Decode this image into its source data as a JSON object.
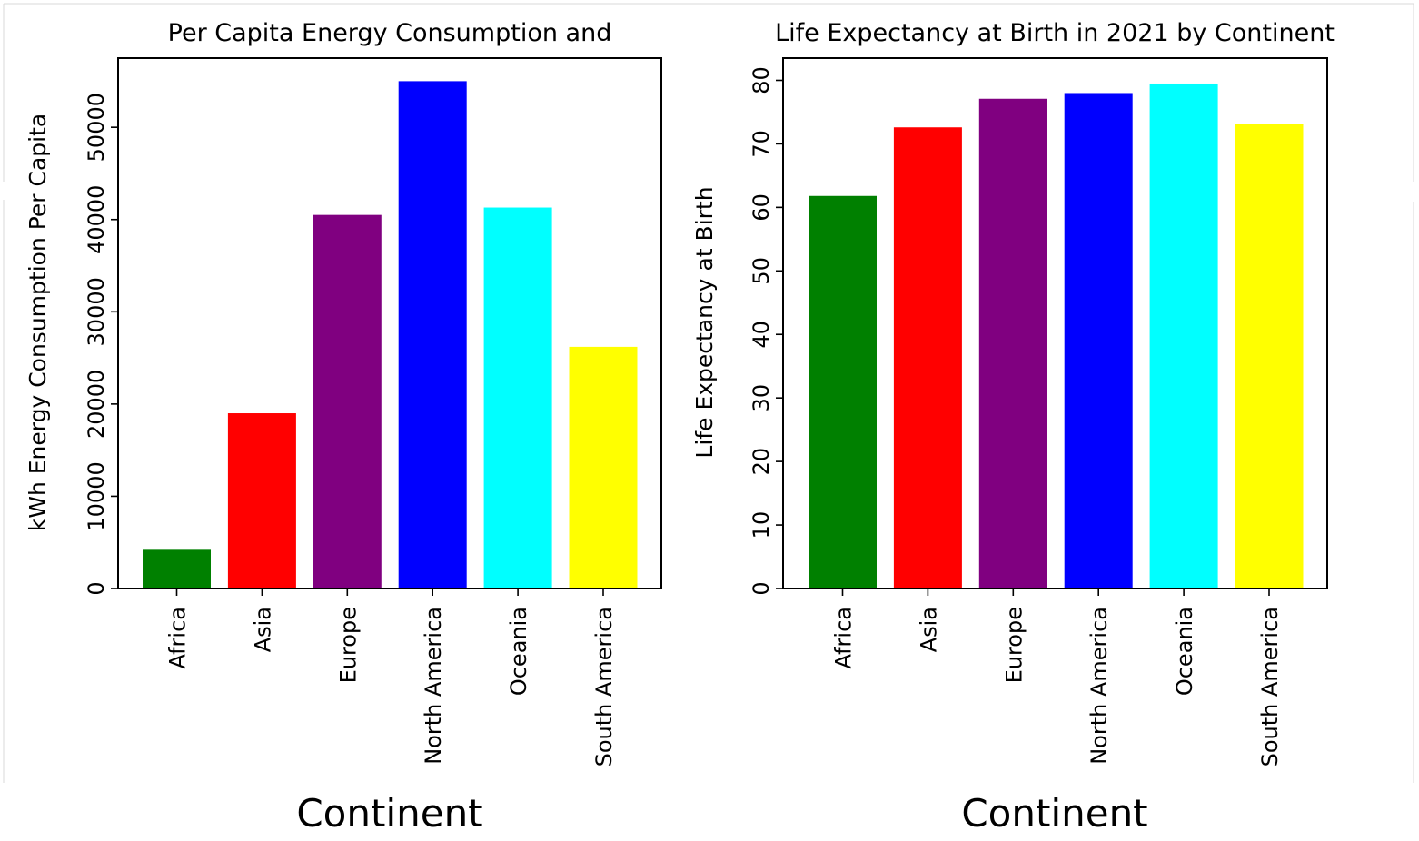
{
  "chart_data": [
    {
      "type": "bar",
      "title": "Per Capita Energy Consumption and",
      "xlabel": "Continent",
      "ylabel": "kWh Energy Consumption Per Capita",
      "categories": [
        "Africa",
        "Asia",
        "Europe",
        "North America",
        "Oceania",
        "South America"
      ],
      "values": [
        4200,
        19000,
        40500,
        55000,
        41300,
        26200
      ],
      "colors": [
        "#008000",
        "#ff0000",
        "#800080",
        "#0000ff",
        "#00ffff",
        "#ffff00"
      ],
      "ylim": [
        0,
        57500
      ],
      "yticks": [
        0,
        10000,
        20000,
        30000,
        40000,
        50000
      ],
      "grid": false,
      "legend": false
    },
    {
      "type": "bar",
      "title": "Life Expectancy at Birth in 2021 by Continent",
      "xlabel": "Continent",
      "ylabel": "Life Expectancy at Birth",
      "categories": [
        "Africa",
        "Asia",
        "Europe",
        "North America",
        "Oceania",
        "South America"
      ],
      "values": [
        61.8,
        72.6,
        77.1,
        78.0,
        79.5,
        73.2
      ],
      "colors": [
        "#008000",
        "#ff0000",
        "#800080",
        "#0000ff",
        "#00ffff",
        "#ffff00"
      ],
      "ylim": [
        0,
        83.5
      ],
      "yticks": [
        0,
        10,
        20,
        30,
        40,
        50,
        60,
        70,
        80
      ],
      "grid": false,
      "legend": false
    }
  ]
}
